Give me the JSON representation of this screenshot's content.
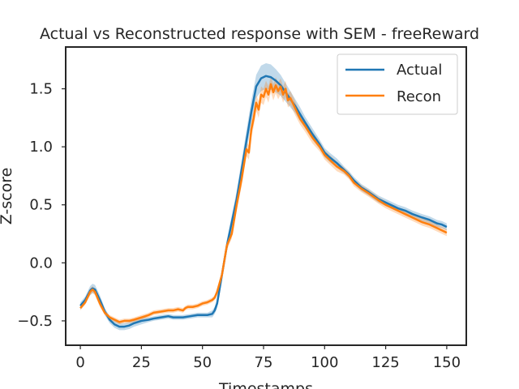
{
  "chart_data": {
    "type": "line",
    "title": "Actual vs Reconstructed response with SEM - freeReward",
    "xlabel": "Timestamps",
    "ylabel": "Z-score",
    "xlim": [
      -6,
      158
    ],
    "ylim": [
      -0.71,
      1.86
    ],
    "x_ticks": [
      0,
      25,
      50,
      75,
      100,
      125,
      150
    ],
    "y_ticks": [
      -0.5,
      0.0,
      0.5,
      1.0,
      1.5
    ],
    "y_tick_labels": [
      "−0.5",
      "0.0",
      "0.5",
      "1.0",
      "1.5"
    ],
    "grid": false,
    "legend_position": "top-right",
    "shaded_error": "SEM",
    "series": [
      {
        "name": "Actual",
        "color": "#1f77b4",
        "x": [
          0,
          2,
          4,
          5,
          6,
          8,
          10,
          12,
          14,
          16,
          18,
          20,
          22,
          25,
          28,
          30,
          33,
          36,
          38,
          40,
          42,
          45,
          48,
          50,
          52,
          54,
          55,
          56,
          58,
          60,
          62,
          64,
          66,
          68,
          70,
          72,
          74,
          76,
          78,
          80,
          82,
          84,
          86,
          88,
          90,
          92,
          95,
          98,
          100,
          102,
          105,
          108,
          110,
          112,
          115,
          118,
          120,
          122,
          125,
          128,
          130,
          133,
          136,
          140,
          143,
          146,
          148,
          150
        ],
        "y": [
          -0.37,
          -0.32,
          -0.24,
          -0.22,
          -0.23,
          -0.32,
          -0.42,
          -0.49,
          -0.53,
          -0.55,
          -0.55,
          -0.54,
          -0.52,
          -0.5,
          -0.49,
          -0.48,
          -0.47,
          -0.46,
          -0.47,
          -0.47,
          -0.47,
          -0.46,
          -0.45,
          -0.45,
          -0.45,
          -0.44,
          -0.41,
          -0.35,
          -0.1,
          0.15,
          0.35,
          0.55,
          0.8,
          1.05,
          1.3,
          1.52,
          1.59,
          1.61,
          1.6,
          1.57,
          1.53,
          1.47,
          1.41,
          1.35,
          1.28,
          1.21,
          1.11,
          1.02,
          0.95,
          0.91,
          0.86,
          0.8,
          0.76,
          0.71,
          0.65,
          0.61,
          0.58,
          0.55,
          0.52,
          0.49,
          0.47,
          0.45,
          0.42,
          0.39,
          0.37,
          0.34,
          0.33,
          0.31
        ],
        "sem": [
          0.03,
          0.03,
          0.04,
          0.04,
          0.04,
          0.04,
          0.03,
          0.03,
          0.03,
          0.03,
          0.03,
          0.03,
          0.03,
          0.03,
          0.02,
          0.02,
          0.02,
          0.02,
          0.02,
          0.02,
          0.02,
          0.02,
          0.02,
          0.02,
          0.02,
          0.03,
          0.03,
          0.04,
          0.05,
          0.05,
          0.06,
          0.07,
          0.08,
          0.09,
          0.1,
          0.1,
          0.11,
          0.11,
          0.11,
          0.1,
          0.09,
          0.08,
          0.07,
          0.06,
          0.06,
          0.05,
          0.05,
          0.04,
          0.04,
          0.04,
          0.04,
          0.03,
          0.03,
          0.03,
          0.03,
          0.03,
          0.03,
          0.03,
          0.03,
          0.03,
          0.03,
          0.03,
          0.03,
          0.03,
          0.03,
          0.03,
          0.03,
          0.03
        ]
      },
      {
        "name": "Recon",
        "color": "#ff7f0e",
        "x": [
          0,
          2,
          4,
          5,
          6,
          8,
          10,
          12,
          14,
          16,
          18,
          20,
          22,
          25,
          28,
          30,
          33,
          36,
          38,
          40,
          42,
          43,
          44,
          46,
          48,
          50,
          52,
          54,
          55,
          56,
          58,
          60,
          62,
          64,
          66,
          68,
          69,
          70,
          71,
          72,
          73,
          74,
          75,
          76,
          77,
          78,
          79,
          80,
          81,
          82,
          83,
          84,
          85,
          86,
          88,
          90,
          92,
          95,
          98,
          100,
          102,
          105,
          108,
          110,
          112,
          115,
          118,
          120,
          122,
          125,
          128,
          130,
          133,
          136,
          140,
          143,
          146,
          148,
          150
        ],
        "y": [
          -0.39,
          -0.34,
          -0.25,
          -0.23,
          -0.25,
          -0.35,
          -0.43,
          -0.47,
          -0.49,
          -0.51,
          -0.5,
          -0.5,
          -0.49,
          -0.47,
          -0.45,
          -0.43,
          -0.42,
          -0.41,
          -0.41,
          -0.4,
          -0.41,
          -0.39,
          -0.38,
          -0.38,
          -0.37,
          -0.35,
          -0.34,
          -0.32,
          -0.3,
          -0.25,
          -0.1,
          0.15,
          0.25,
          0.5,
          0.72,
          0.98,
          0.95,
          1.15,
          1.25,
          1.38,
          1.32,
          1.45,
          1.43,
          1.5,
          1.45,
          1.54,
          1.47,
          1.53,
          1.48,
          1.52,
          1.45,
          1.5,
          1.4,
          1.42,
          1.33,
          1.24,
          1.18,
          1.08,
          1.0,
          0.93,
          0.89,
          0.83,
          0.79,
          0.75,
          0.69,
          0.64,
          0.6,
          0.57,
          0.54,
          0.5,
          0.47,
          0.45,
          0.42,
          0.39,
          0.35,
          0.33,
          0.3,
          0.28,
          0.26
        ],
        "sem": [
          0.02,
          0.02,
          0.03,
          0.03,
          0.03,
          0.03,
          0.02,
          0.02,
          0.02,
          0.02,
          0.02,
          0.02,
          0.02,
          0.02,
          0.02,
          0.02,
          0.02,
          0.02,
          0.02,
          0.02,
          0.02,
          0.02,
          0.02,
          0.02,
          0.02,
          0.02,
          0.02,
          0.02,
          0.02,
          0.03,
          0.03,
          0.04,
          0.04,
          0.05,
          0.06,
          0.06,
          0.06,
          0.07,
          0.07,
          0.07,
          0.07,
          0.07,
          0.07,
          0.07,
          0.07,
          0.07,
          0.07,
          0.07,
          0.07,
          0.07,
          0.07,
          0.07,
          0.06,
          0.06,
          0.06,
          0.05,
          0.05,
          0.05,
          0.04,
          0.04,
          0.04,
          0.04,
          0.03,
          0.03,
          0.03,
          0.03,
          0.03,
          0.03,
          0.03,
          0.03,
          0.03,
          0.03,
          0.03,
          0.03,
          0.03,
          0.03,
          0.03,
          0.03,
          0.03
        ]
      }
    ]
  }
}
